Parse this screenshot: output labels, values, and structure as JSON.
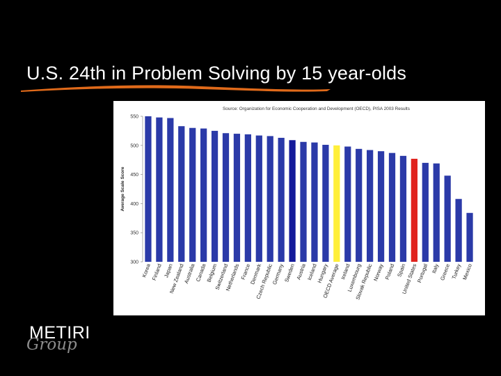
{
  "slide": {
    "title": "U.S. 24th in Problem Solving by 15 year-olds",
    "logo_top": "METIRI",
    "logo_bottom": "Group"
  },
  "colors": {
    "background": "#000000",
    "title_text": "#ffffff",
    "swoosh": "#e06a1a",
    "bar_default": "#2b3aa8",
    "bar_highlight_yellow": "#ffef3a",
    "bar_highlight_red": "#e0231e",
    "bar_dark": "#141a9a"
  },
  "chart_data": {
    "type": "bar",
    "title": "Source: Organization for Economic Cooperation and Development (OECD), PISA 2003 Results",
    "xlabel": "",
    "ylabel": "Average Scale Score",
    "ylim": [
      300,
      550
    ],
    "yticks": [
      550,
      500,
      450,
      400,
      350,
      300
    ],
    "grid": false,
    "categories": [
      "Korea",
      "Finland",
      "Japan",
      "New Zealand",
      "Australia",
      "Canada",
      "Belgium",
      "Switzerland",
      "Netherlands",
      "France",
      "Denmark",
      "Czech Republic",
      "Germany",
      "Sweden",
      "Austria",
      "Iceland",
      "Hungary",
      "OECD Average",
      "Ireland",
      "Luxembourg",
      "Slovak Republic",
      "Norway",
      "Poland",
      "Spain",
      "United States",
      "Portugal",
      "Italy",
      "Greece",
      "Turkey",
      "Mexico"
    ],
    "values": [
      550,
      548,
      547,
      533,
      530,
      529,
      525,
      521,
      520,
      519,
      517,
      516,
      513,
      509,
      506,
      505,
      501,
      500,
      498,
      494,
      492,
      490,
      487,
      482,
      477,
      470,
      469,
      448,
      408,
      384
    ],
    "bar_colors": [
      "default",
      "default",
      "default",
      "default",
      "default",
      "default",
      "default",
      "default",
      "default",
      "default",
      "default",
      "default",
      "default",
      "dark",
      "default",
      "default",
      "default",
      "yellow",
      "default",
      "default",
      "default",
      "default",
      "default",
      "default",
      "red",
      "default",
      "default",
      "default",
      "default",
      "default"
    ]
  }
}
